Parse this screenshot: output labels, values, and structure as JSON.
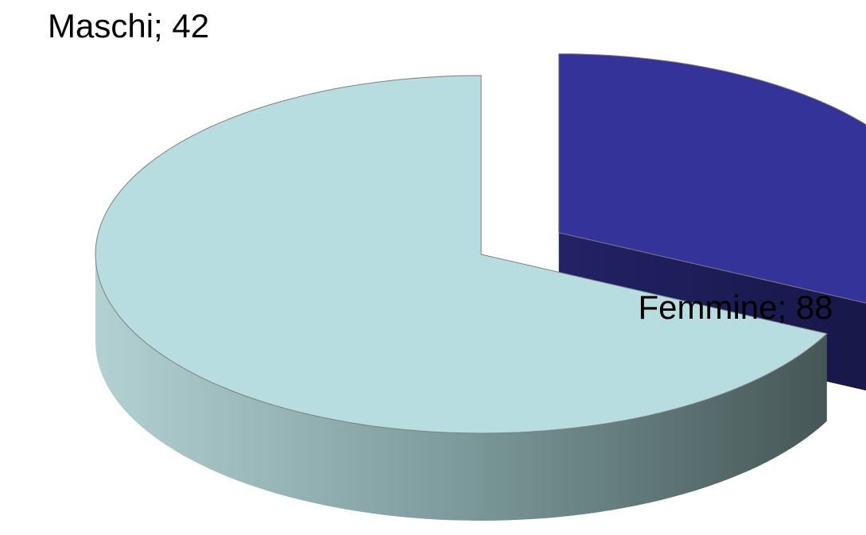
{
  "chart_data": {
    "type": "pie",
    "values": [
      42,
      88
    ],
    "value_labels": [
      "Maschi; 42",
      "Femmine; 88"
    ],
    "colors": [
      "#333399",
      "#b8dde0"
    ],
    "start_angle": 0,
    "direction": "clockwise",
    "explode": [
      1,
      0
    ],
    "three_d": true
  }
}
